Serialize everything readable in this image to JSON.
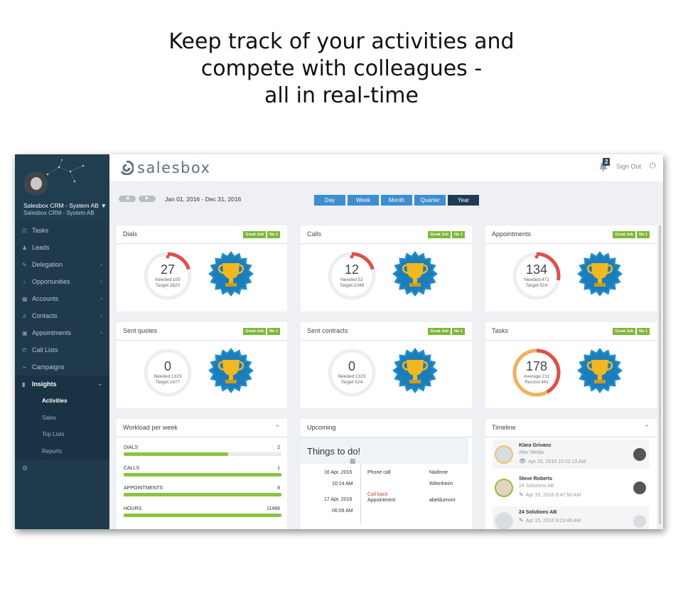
{
  "headline": {
    "line1": "Keep track of your activities and",
    "line2": "compete with colleagues -",
    "line3": "all in real-time"
  },
  "sidebar": {
    "company": "Salesbox CRM - System AB",
    "company_caret": "▼",
    "sub": "Salesbox CRM - System AB",
    "items": [
      {
        "label": "Tasks",
        "icon": "tasks-icon",
        "glyph": "☑",
        "arrow": ""
      },
      {
        "label": "Leads",
        "icon": "leads-icon",
        "glyph": "♟",
        "arrow": ""
      },
      {
        "label": "Delegation",
        "icon": "delegation-icon",
        "glyph": "✎",
        "arrow": "‹"
      },
      {
        "label": "Opportunities",
        "icon": "opportunities-icon",
        "glyph": "♁",
        "arrow": "‹"
      },
      {
        "label": "Accounts",
        "icon": "accounts-icon",
        "glyph": "▦",
        "arrow": "‹"
      },
      {
        "label": "Contacts",
        "icon": "contacts-icon",
        "glyph": "♙",
        "arrow": "‹"
      },
      {
        "label": "Appointments",
        "icon": "appointments-icon",
        "glyph": "▣",
        "arrow": "‹"
      },
      {
        "label": "Call Lists",
        "icon": "phone-icon",
        "glyph": "✆",
        "arrow": ""
      },
      {
        "label": "Campaigns",
        "icon": "campaigns-icon",
        "glyph": "➢",
        "arrow": ""
      },
      {
        "label": "Insights",
        "icon": "insights-icon",
        "glyph": "▮",
        "arrow": "⌄"
      }
    ],
    "subitems": [
      "Activities",
      "Sales",
      "Top Lists",
      "Reports"
    ],
    "bottom_glyph": "⚙"
  },
  "topbar": {
    "logo": "salesbox",
    "notifications": "2",
    "signout": "Sign Out"
  },
  "controls": {
    "prev": "◀",
    "next": "▶",
    "date_range": "Jan 01, 2016 - Dec 31, 2016",
    "periods": [
      "Day",
      "Week",
      "Month",
      "Quarter",
      "Year"
    ],
    "selected_period": "Year"
  },
  "badges": {
    "great": "Great Job",
    "no1": "No 1"
  },
  "stats": [
    {
      "title": "Dials",
      "value": "27",
      "line1": "Needed:105",
      "line2": "Target:2620",
      "progress": 0.2,
      "style": "needed"
    },
    {
      "title": "Calls",
      "value": "12",
      "line1": "Needed:52",
      "line2": "Target:1048",
      "progress": 0.2,
      "style": "needed"
    },
    {
      "title": "Appointments",
      "value": "134",
      "line1": "Needed:472",
      "line2": "Target:524",
      "progress": 0.28,
      "style": "needed"
    },
    {
      "title": "Sent quotes",
      "value": "0",
      "line1": "Needed:1323",
      "line2": "Target:1677",
      "progress": 0,
      "style": "needed"
    },
    {
      "title": "Sent contracts",
      "value": "0",
      "line1": "Needed:1323",
      "line2": "Target:524",
      "progress": 0,
      "style": "needed"
    },
    {
      "title": "Tasks",
      "value": "178",
      "line1": "Average:211",
      "line2": "Record:441",
      "progress": 0.42,
      "style": "average"
    }
  ],
  "workload": {
    "title": "Workload per week",
    "rows": [
      {
        "label": "DIALS",
        "value": "2",
        "fill": 0.66
      },
      {
        "label": "CALLS",
        "value": "1",
        "fill": 1.0
      },
      {
        "label": "APPOINTMENTS",
        "value": "9",
        "fill": 1.0
      },
      {
        "label": "HOURS",
        "value": "11466",
        "fill": 1.0
      }
    ]
  },
  "upcoming": {
    "title": "Upcoming",
    "todo_title": "Things to do!",
    "entries": [
      {
        "date": "16 Apr, 2016",
        "time": "10:14 AM",
        "type": "Phone call",
        "tag": "",
        "who": "Nadinne",
        "who2": "Witenheim"
      },
      {
        "date": "17 Apr, 2016",
        "time": "06:09 AM",
        "type": "Appointment",
        "tag": "Call back",
        "who": "abeldumont",
        "who2": ""
      }
    ]
  },
  "timeline": {
    "title": "Timeline",
    "items": [
      {
        "name": "Klara Grivans",
        "company": "Aller Media",
        "time": "Apr 15, 2016 10:31:19 AM",
        "icon": "eye-icon",
        "glyph": "👁"
      },
      {
        "name": "Steve Roberts",
        "company": "24 Solutions AB",
        "time": "Apr 15, 2016 9:47:50 AM",
        "icon": "edit-icon",
        "glyph": "✎"
      },
      {
        "name": "24 Solutions AB",
        "company": "",
        "time": "Apr 15, 2016 9:23:46 AM",
        "icon": "edit-icon",
        "glyph": "✎"
      }
    ]
  },
  "colors": {
    "sidebar": "#1f3a4c",
    "accent_blue": "#3d8ed0",
    "selected_period": "#1f3c54",
    "badge_green": "#7db83a",
    "progress_red": "#e0504a",
    "progress_orange": "#f2b25c",
    "bar_green": "#8cc43f",
    "trophy_blue": "#1f8fd0",
    "trophy_gold": "#f3b81d"
  }
}
